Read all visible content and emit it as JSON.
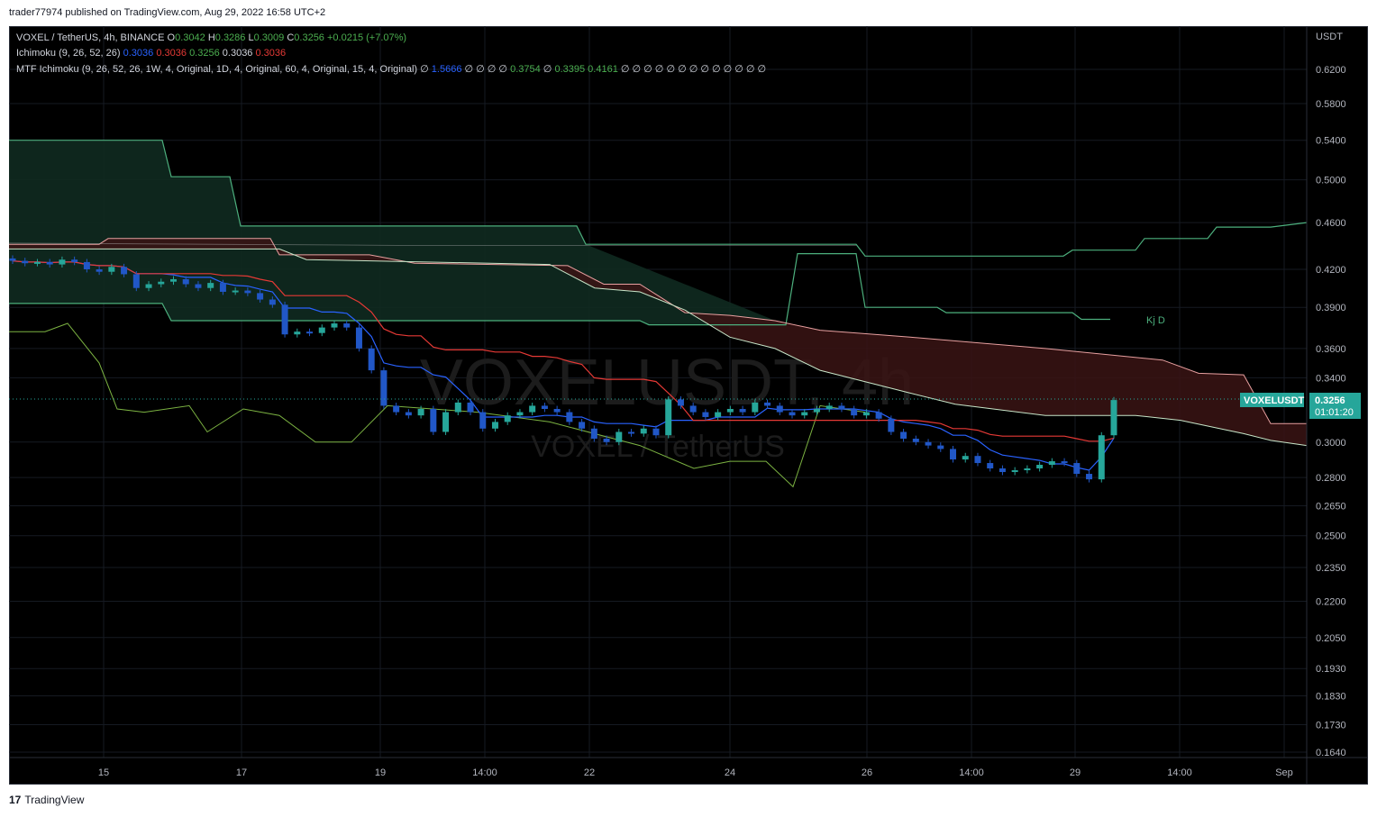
{
  "header": {
    "published": "trader77974 published on TradingView.com, Aug 29, 2022 16:58 UTC+2"
  },
  "legend": {
    "symbol": "VOXEL / TetherUS, 4h, BINANCE",
    "o_label": "O",
    "o_value": "0.3042",
    "h_label": "H",
    "h_value": "0.3286",
    "l_label": "L",
    "l_value": "0.3009",
    "c_label": "C",
    "c_value": "0.3256",
    "change": "+0.0215 (+7.07%)",
    "ichimoku_label": "Ichimoku (9, 26, 52, 26)",
    "ichimoku_values": [
      "0.3036",
      "0.3036",
      "0.3256",
      "0.3036",
      "0.3036"
    ],
    "mtf_label": "MTF Ichimoku (9, 26, 52, 26, 1W, 4, Original, 1D, 4, Original, 60, 4, Original, 15, 4, Original)",
    "mtf_values_a": "∅",
    "mtf_value_b": "1.5666",
    "mtf_values_c": "∅ ∅ ∅ ∅",
    "mtf_value_d": "0.3754",
    "mtf_values_e": "∅",
    "mtf_value_f": "0.3395",
    "mtf_value_g": "0.4161",
    "mtf_values_h": "∅ ∅ ∅ ∅ ∅ ∅ ∅ ∅ ∅ ∅ ∅ ∅ ∅"
  },
  "watermark": {
    "big": "VOXELUSDT, 4h",
    "small": "VOXEL / TetherUS"
  },
  "annotation": "Kj D",
  "price_tag": {
    "symbol": "VOXELUSDT",
    "price": "0.3256",
    "countdown": "01:01:20"
  },
  "colors": {
    "up": "#26a69a",
    "down": "#2157c7",
    "tenkan": "#2962ff",
    "kijun": "#e53935",
    "chikou": "#7cb342",
    "mtf_line": "#4caf7d",
    "cloud_bear": "#3a1414",
    "cloud_bull": "#0f2a20"
  },
  "footer": {
    "brand": "TradingView"
  },
  "chart_data": {
    "type": "candlestick",
    "title": "VOXEL / TetherUS, 4h, BINANCE",
    "y_axis_unit": "USDT",
    "y_scale": "log",
    "ylim": [
      0.16,
      0.67
    ],
    "y_ticks": [
      "0.6200",
      "0.5800",
      "0.5400",
      "0.5000",
      "0.4600",
      "0.4200",
      "0.3900",
      "0.3600",
      "0.3400",
      "0.3000",
      "0.2800",
      "0.2650",
      "0.2500",
      "0.2350",
      "0.2200",
      "0.2050",
      "0.1930",
      "0.1830",
      "0.1730",
      "0.1640"
    ],
    "x_ticks": [
      "15",
      "17",
      "19",
      "14:00",
      "22",
      "24",
      "26",
      "14:00",
      "29",
      "14:00",
      "Sep"
    ],
    "last_price": 0.3256,
    "ohlc": {
      "open": 0.3042,
      "high": 0.3286,
      "low": 0.3009,
      "close": 0.3256
    },
    "candles_close": [
      0.427,
      0.425,
      0.426,
      0.424,
      0.428,
      0.426,
      0.42,
      0.418,
      0.422,
      0.416,
      0.405,
      0.408,
      0.41,
      0.412,
      0.408,
      0.405,
      0.409,
      0.402,
      0.403,
      0.401,
      0.396,
      0.392,
      0.37,
      0.372,
      0.371,
      0.375,
      0.378,
      0.375,
      0.36,
      0.345,
      0.322,
      0.318,
      0.316,
      0.32,
      0.306,
      0.318,
      0.324,
      0.318,
      0.308,
      0.312,
      0.316,
      0.318,
      0.322,
      0.32,
      0.318,
      0.312,
      0.308,
      0.302,
      0.3,
      0.306,
      0.305,
      0.308,
      0.304,
      0.326,
      0.322,
      0.318,
      0.315,
      0.318,
      0.32,
      0.318,
      0.324,
      0.322,
      0.318,
      0.316,
      0.318,
      0.32,
      0.322,
      0.32,
      0.316,
      0.318,
      0.314,
      0.306,
      0.302,
      0.3,
      0.298,
      0.296,
      0.29,
      0.292,
      0.288,
      0.285,
      0.283,
      0.284,
      0.285,
      0.287,
      0.289,
      0.288,
      0.282,
      0.279,
      0.304,
      0.3256
    ],
    "series": [
      {
        "name": "Ichimoku Tenkan",
        "color": "#2962ff"
      },
      {
        "name": "Ichimoku Kijun",
        "color": "#e53935"
      },
      {
        "name": "Chikou",
        "color": "#7cb342"
      },
      {
        "name": "MTF Ichimoku",
        "color": "#4caf7d"
      }
    ]
  }
}
